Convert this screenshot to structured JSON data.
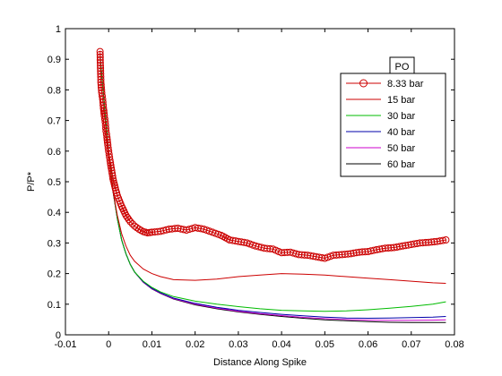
{
  "chart_data": {
    "type": "line",
    "title": "",
    "xlabel": "Distance Along Spike",
    "ylabel": "P/P*",
    "xlim": [
      -0.01,
      0.08
    ],
    "ylim": [
      0,
      1
    ],
    "x_ticks": [
      -0.01,
      0,
      0.01,
      0.02,
      0.03,
      0.04,
      0.05,
      0.06,
      0.07,
      0.08
    ],
    "x_tick_labels": [
      "-0.01",
      "0",
      "0.01",
      "0.02",
      "0.03",
      "0.04",
      "0.05",
      "0.06",
      "0.07",
      "0.08"
    ],
    "y_ticks": [
      0,
      0.1,
      0.2,
      0.3,
      0.4,
      0.5,
      0.6,
      0.7,
      0.8,
      0.9,
      1
    ],
    "y_tick_labels": [
      "0",
      "0.1",
      "0.2",
      "0.3",
      "0.4",
      "0.5",
      "0.6",
      "0.7",
      "0.8",
      "0.9",
      "1"
    ],
    "grid": false,
    "legend_title": "PO",
    "legend_position": "top-right",
    "series": [
      {
        "name": "8.33 bar",
        "color": "#cc0000",
        "marker": "circle",
        "x": [
          -0.002,
          -0.0018,
          -0.0016,
          -0.0014,
          -0.0012,
          -0.001,
          -0.0008,
          -0.0006,
          -0.0004,
          -0.0002,
          0,
          0.0003,
          0.0006,
          0.001,
          0.0015,
          0.002,
          0.003,
          0.004,
          0.005,
          0.006,
          0.007,
          0.008,
          0.009,
          0.01,
          0.012,
          0.014,
          0.016,
          0.018,
          0.02,
          0.022,
          0.024,
          0.026,
          0.028,
          0.03,
          0.032,
          0.034,
          0.036,
          0.038,
          0.04,
          0.042,
          0.044,
          0.046,
          0.048,
          0.05,
          0.052,
          0.054,
          0.056,
          0.058,
          0.06,
          0.062,
          0.064,
          0.066,
          0.068,
          0.07,
          0.072,
          0.074,
          0.076,
          0.078
        ],
        "y": [
          0.925,
          0.825,
          0.79,
          0.77,
          0.74,
          0.715,
          0.695,
          0.665,
          0.645,
          0.62,
          0.6,
          0.57,
          0.545,
          0.51,
          0.48,
          0.455,
          0.42,
          0.39,
          0.37,
          0.355,
          0.345,
          0.337,
          0.333,
          0.335,
          0.338,
          0.345,
          0.348,
          0.342,
          0.35,
          0.345,
          0.335,
          0.325,
          0.31,
          0.305,
          0.3,
          0.29,
          0.283,
          0.28,
          0.268,
          0.27,
          0.262,
          0.26,
          0.255,
          0.25,
          0.26,
          0.262,
          0.265,
          0.27,
          0.272,
          0.278,
          0.283,
          0.285,
          0.29,
          0.295,
          0.3,
          0.302,
          0.305,
          0.31
        ]
      },
      {
        "name": "15 bar",
        "color": "#cc0000",
        "marker": "none",
        "x": [
          -0.002,
          -0.001,
          0,
          0.001,
          0.002,
          0.003,
          0.004,
          0.005,
          0.006,
          0.008,
          0.01,
          0.012,
          0.015,
          0.02,
          0.025,
          0.03,
          0.035,
          0.04,
          0.045,
          0.05,
          0.055,
          0.06,
          0.065,
          0.07,
          0.075,
          0.078
        ],
        "y": [
          0.78,
          0.68,
          0.58,
          0.47,
          0.39,
          0.33,
          0.29,
          0.26,
          0.24,
          0.215,
          0.2,
          0.19,
          0.18,
          0.178,
          0.182,
          0.19,
          0.195,
          0.2,
          0.198,
          0.195,
          0.19,
          0.185,
          0.18,
          0.175,
          0.17,
          0.168
        ]
      },
      {
        "name": "30 bar",
        "color": "#00bb00",
        "marker": "none",
        "x": [
          -0.002,
          -0.001,
          0,
          0.001,
          0.002,
          0.003,
          0.004,
          0.005,
          0.006,
          0.008,
          0.01,
          0.012,
          0.015,
          0.02,
          0.025,
          0.03,
          0.035,
          0.04,
          0.045,
          0.05,
          0.055,
          0.06,
          0.065,
          0.07,
          0.075,
          0.078
        ],
        "y": [
          0.91,
          0.75,
          0.6,
          0.47,
          0.38,
          0.31,
          0.265,
          0.23,
          0.205,
          0.175,
          0.155,
          0.14,
          0.125,
          0.11,
          0.1,
          0.092,
          0.085,
          0.08,
          0.078,
          0.077,
          0.078,
          0.082,
          0.087,
          0.093,
          0.1,
          0.108
        ]
      },
      {
        "name": "40 bar",
        "color": "#0000aa",
        "marker": "none",
        "x": [
          -0.002,
          -0.001,
          0,
          0.001,
          0.002,
          0.003,
          0.004,
          0.005,
          0.006,
          0.008,
          0.01,
          0.012,
          0.015,
          0.02,
          0.025,
          0.03,
          0.035,
          0.04,
          0.045,
          0.05,
          0.055,
          0.06,
          0.065,
          0.07,
          0.075,
          0.078
        ],
        "y": [
          0.91,
          0.75,
          0.6,
          0.47,
          0.38,
          0.31,
          0.265,
          0.23,
          0.205,
          0.173,
          0.152,
          0.137,
          0.12,
          0.103,
          0.09,
          0.08,
          0.073,
          0.067,
          0.062,
          0.058,
          0.055,
          0.054,
          0.055,
          0.056,
          0.058,
          0.06
        ]
      },
      {
        "name": "50 bar",
        "color": "#cc00cc",
        "marker": "none",
        "x": [
          -0.002,
          -0.001,
          0,
          0.001,
          0.002,
          0.003,
          0.004,
          0.005,
          0.006,
          0.008,
          0.01,
          0.012,
          0.015,
          0.02,
          0.025,
          0.03,
          0.035,
          0.04,
          0.045,
          0.05,
          0.055,
          0.06,
          0.065,
          0.07,
          0.075,
          0.078
        ],
        "y": [
          0.91,
          0.75,
          0.6,
          0.47,
          0.38,
          0.31,
          0.265,
          0.23,
          0.205,
          0.172,
          0.151,
          0.136,
          0.118,
          0.1,
          0.087,
          0.077,
          0.069,
          0.063,
          0.057,
          0.053,
          0.05,
          0.048,
          0.047,
          0.047,
          0.048,
          0.049
        ]
      },
      {
        "name": "60 bar",
        "color": "#000000",
        "marker": "none",
        "x": [
          -0.002,
          -0.001,
          0,
          0.001,
          0.002,
          0.003,
          0.004,
          0.005,
          0.006,
          0.008,
          0.01,
          0.012,
          0.015,
          0.02,
          0.025,
          0.03,
          0.035,
          0.04,
          0.045,
          0.05,
          0.055,
          0.06,
          0.065,
          0.07,
          0.075,
          0.078
        ],
        "y": [
          0.91,
          0.75,
          0.6,
          0.47,
          0.38,
          0.31,
          0.265,
          0.23,
          0.205,
          0.172,
          0.15,
          0.135,
          0.117,
          0.098,
          0.085,
          0.075,
          0.067,
          0.06,
          0.054,
          0.049,
          0.046,
          0.043,
          0.041,
          0.04,
          0.04,
          0.04
        ]
      }
    ]
  }
}
